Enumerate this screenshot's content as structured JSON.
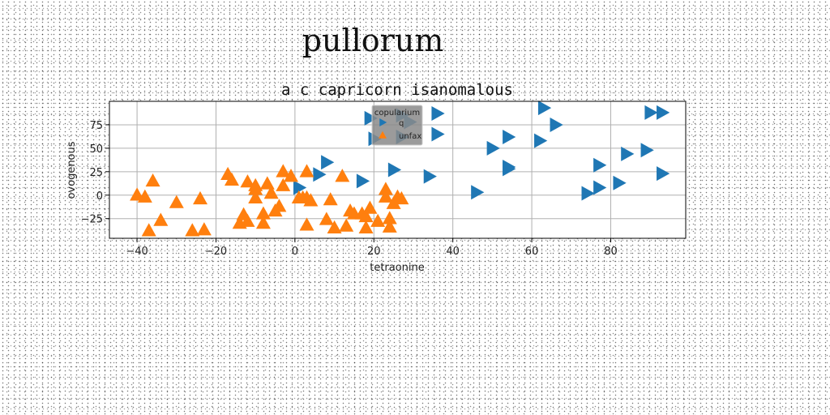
{
  "page": {
    "title": "pullorum"
  },
  "chart_data": {
    "type": "scatter",
    "title": "a c capricorn isanomalous",
    "xlabel": "tetraonine",
    "ylabel": "ovogenous",
    "xlim": [
      -47,
      99
    ],
    "ylim": [
      -46,
      100
    ],
    "xticks": [
      -40,
      -20,
      0,
      20,
      40,
      60,
      80
    ],
    "yticks": [
      -25,
      0,
      25,
      50,
      75
    ],
    "grid": true,
    "legend": {
      "title": "copularium",
      "placement": "top-center"
    },
    "series": [
      {
        "name": "q",
        "color": "#1f77b4",
        "marker": "triangle-right",
        "points": [
          [
            1,
            8
          ],
          [
            6,
            22
          ],
          [
            8,
            35
          ],
          [
            17,
            15
          ],
          [
            20,
            60
          ],
          [
            19,
            82
          ],
          [
            25,
            27
          ],
          [
            27,
            62
          ],
          [
            27,
            85
          ],
          [
            29,
            78
          ],
          [
            34,
            20
          ],
          [
            36,
            65
          ],
          [
            36,
            87
          ],
          [
            46,
            3
          ],
          [
            50,
            50
          ],
          [
            54,
            28
          ],
          [
            54,
            30
          ],
          [
            54,
            62
          ],
          [
            62,
            58
          ],
          [
            63,
            93
          ],
          [
            66,
            75
          ],
          [
            74,
            2
          ],
          [
            77,
            8
          ],
          [
            77,
            32
          ],
          [
            82,
            13
          ],
          [
            84,
            44
          ],
          [
            89,
            48
          ],
          [
            90,
            88
          ],
          [
            93,
            88
          ],
          [
            93,
            23
          ]
        ]
      },
      {
        "name": "unfax",
        "color": "#ff7f0e",
        "marker": "triangle-up",
        "points": [
          [
            -40,
            0
          ],
          [
            -38,
            -2
          ],
          [
            -37,
            -38
          ],
          [
            -36,
            15
          ],
          [
            -34,
            -27
          ],
          [
            -30,
            -8
          ],
          [
            -26,
            -38
          ],
          [
            -24,
            -4
          ],
          [
            -23,
            -37
          ],
          [
            -17,
            22
          ],
          [
            -16,
            16
          ],
          [
            -14,
            -30
          ],
          [
            -13,
            -21
          ],
          [
            -12,
            -28
          ],
          [
            -12,
            14
          ],
          [
            -10,
            -3
          ],
          [
            -10,
            6
          ],
          [
            -10,
            10
          ],
          [
            -8,
            -30
          ],
          [
            -8,
            -20
          ],
          [
            -7,
            12
          ],
          [
            -6,
            2
          ],
          [
            -5,
            -17
          ],
          [
            -4,
            -12
          ],
          [
            -3,
            10
          ],
          [
            -3,
            25
          ],
          [
            -1,
            20
          ],
          [
            1,
            -3
          ],
          [
            2,
            -3
          ],
          [
            3,
            -32
          ],
          [
            3,
            -3
          ],
          [
            3,
            25
          ],
          [
            4,
            -6
          ],
          [
            8,
            -26
          ],
          [
            9,
            -5
          ],
          [
            10,
            -35
          ],
          [
            12,
            20
          ],
          [
            13,
            -33
          ],
          [
            14,
            -17
          ],
          [
            15,
            -20
          ],
          [
            17,
            -20
          ],
          [
            18,
            -23
          ],
          [
            18,
            -35
          ],
          [
            21,
            -28
          ],
          [
            23,
            -2
          ],
          [
            23,
            6
          ],
          [
            24,
            -25
          ],
          [
            24,
            -34
          ],
          [
            25,
            -9
          ],
          [
            26,
            -2
          ],
          [
            27,
            -4
          ],
          [
            19,
            -14
          ]
        ]
      }
    ]
  }
}
